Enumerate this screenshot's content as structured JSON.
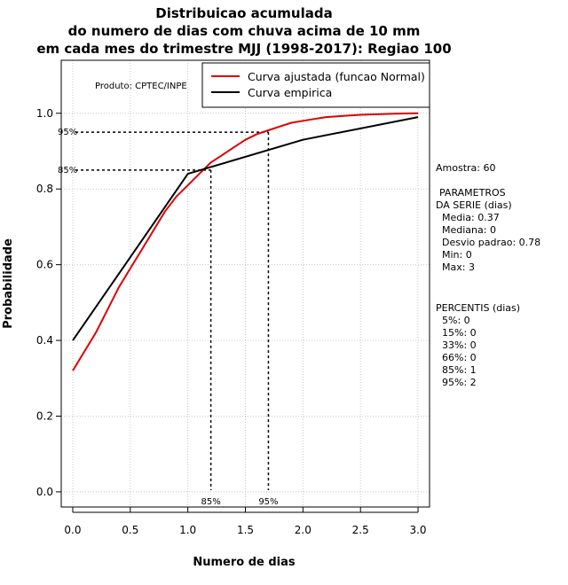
{
  "chart_data": {
    "type": "line",
    "title_lines": [
      "Distribuicao acumulada",
      "do numero de dias com chuva acima de 10 mm",
      "em cada mes do trimestre MJJ (1998-2017): Regiao 100"
    ],
    "xlabel": "Numero de dias",
    "ylabel": "Probabilidade",
    "xlim": [
      -0.1,
      3.1
    ],
    "ylim": [
      -0.04,
      1.14
    ],
    "x_ticks": [
      "0.0",
      "0.5",
      "1.0",
      "1.5",
      "2.0",
      "2.5",
      "3.0"
    ],
    "y_ticks": [
      "0.0",
      "0.2",
      "0.4",
      "0.6",
      "0.8",
      "1.0"
    ],
    "grid": true,
    "legend_position": "top-right",
    "series": [
      {
        "name": "Curva ajustada (funcao Normal)",
        "color": "#dd0000",
        "x": [
          0.0,
          0.1,
          0.2,
          0.3,
          0.4,
          0.5,
          0.6,
          0.7,
          0.8,
          0.9,
          1.0,
          1.1,
          1.2,
          1.3,
          1.4,
          1.5,
          1.6,
          1.7,
          1.8,
          1.9,
          2.0,
          2.2,
          2.5,
          2.8,
          3.0
        ],
        "y": [
          0.32,
          0.37,
          0.42,
          0.48,
          0.54,
          0.59,
          0.64,
          0.69,
          0.74,
          0.78,
          0.81,
          0.84,
          0.87,
          0.89,
          0.91,
          0.93,
          0.945,
          0.955,
          0.965,
          0.975,
          0.98,
          0.99,
          0.996,
          0.999,
          1.0
        ]
      },
      {
        "name": "Curva empirica",
        "color": "#000000",
        "x": [
          0.0,
          1.0,
          2.0,
          3.0
        ],
        "y": [
          0.4,
          0.84,
          0.93,
          0.99
        ]
      }
    ],
    "reference_lines": [
      {
        "label": "85%",
        "prob": 0.85,
        "x": 1.2
      },
      {
        "label": "95%",
        "prob": 0.95,
        "x": 1.7
      }
    ],
    "annotation_product": "Produto: CPTEC/INPE",
    "side_panel": {
      "amostra": "Amostra: 60",
      "params_title_1": "PARAMETROS",
      "params_title_2": "DA SERIE (dias)",
      "params": [
        "Media: 0.37",
        "Mediana: 0",
        "Desvio padrao: 0.78",
        "Min: 0",
        "Max: 3"
      ],
      "percentis_title": "PERCENTIS (dias)",
      "percentis": [
        "5%: 0",
        "15%: 0",
        "33%: 0",
        "66%: 0",
        "85%: 1",
        "95%: 2"
      ]
    }
  }
}
